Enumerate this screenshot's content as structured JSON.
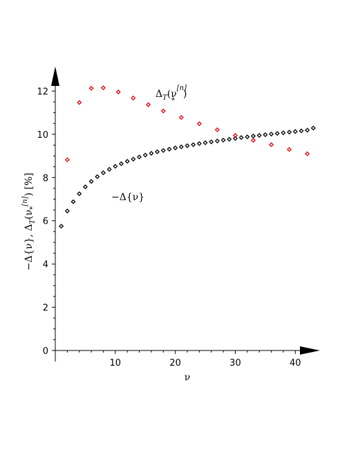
{
  "chart_data": {
    "type": "scatter",
    "title": "",
    "xlabel": "ν",
    "ylabel": {
      "part1": "−Δ{ν}, Δ",
      "sub": "T",
      "part2": "(ν",
      "sub2": "*",
      "sup": "[n]",
      "part3": ") [%]"
    },
    "xlim": [
      0,
      44
    ],
    "ylim": [
      0,
      13.2
    ],
    "x_ticks": [
      10,
      20,
      30,
      40
    ],
    "y_ticks": [
      0,
      2,
      4,
      6,
      8,
      10,
      12
    ],
    "grid": false,
    "series": [
      {
        "label_parts": {
          "main": "−Δ{ν}"
        },
        "color": "#000000",
        "marker": "diamond",
        "x": [
          1,
          2,
          3,
          4,
          5,
          6,
          7,
          8,
          9,
          10,
          11,
          12,
          13,
          14,
          15,
          16,
          17,
          18,
          19,
          20,
          21,
          22,
          23,
          24,
          25,
          26,
          27,
          28,
          29,
          30,
          31,
          32,
          33,
          34,
          35,
          36,
          37,
          38,
          39,
          40,
          41,
          42,
          43
        ],
        "y": [
          5.75,
          6.45,
          6.88,
          7.25,
          7.57,
          7.82,
          8.04,
          8.22,
          8.38,
          8.52,
          8.64,
          8.75,
          8.85,
          8.95,
          9.04,
          9.12,
          9.19,
          9.25,
          9.31,
          9.37,
          9.42,
          9.47,
          9.52,
          9.57,
          9.61,
          9.65,
          9.69,
          9.73,
          9.77,
          9.81,
          9.85,
          9.88,
          9.92,
          9.95,
          9.98,
          10.01,
          10.04,
          10.07,
          10.1,
          10.13,
          10.16,
          10.19,
          10.29
        ]
      },
      {
        "label_parts": {
          "main": "Δ",
          "sub": "T",
          "mid": "(ν",
          "sup": "[n]",
          "sub2": "*",
          "end": ")"
        },
        "color": "#e8000b",
        "marker": "diamond",
        "x": [
          2,
          4,
          6,
          8,
          10.5,
          13,
          15.5,
          18,
          21,
          24,
          27,
          30,
          33,
          36,
          39,
          42
        ],
        "y": [
          8.82,
          11.47,
          12.13,
          12.15,
          11.96,
          11.68,
          11.37,
          11.08,
          10.78,
          10.49,
          10.21,
          9.95,
          9.72,
          9.52,
          9.3,
          9.1
        ]
      }
    ]
  }
}
